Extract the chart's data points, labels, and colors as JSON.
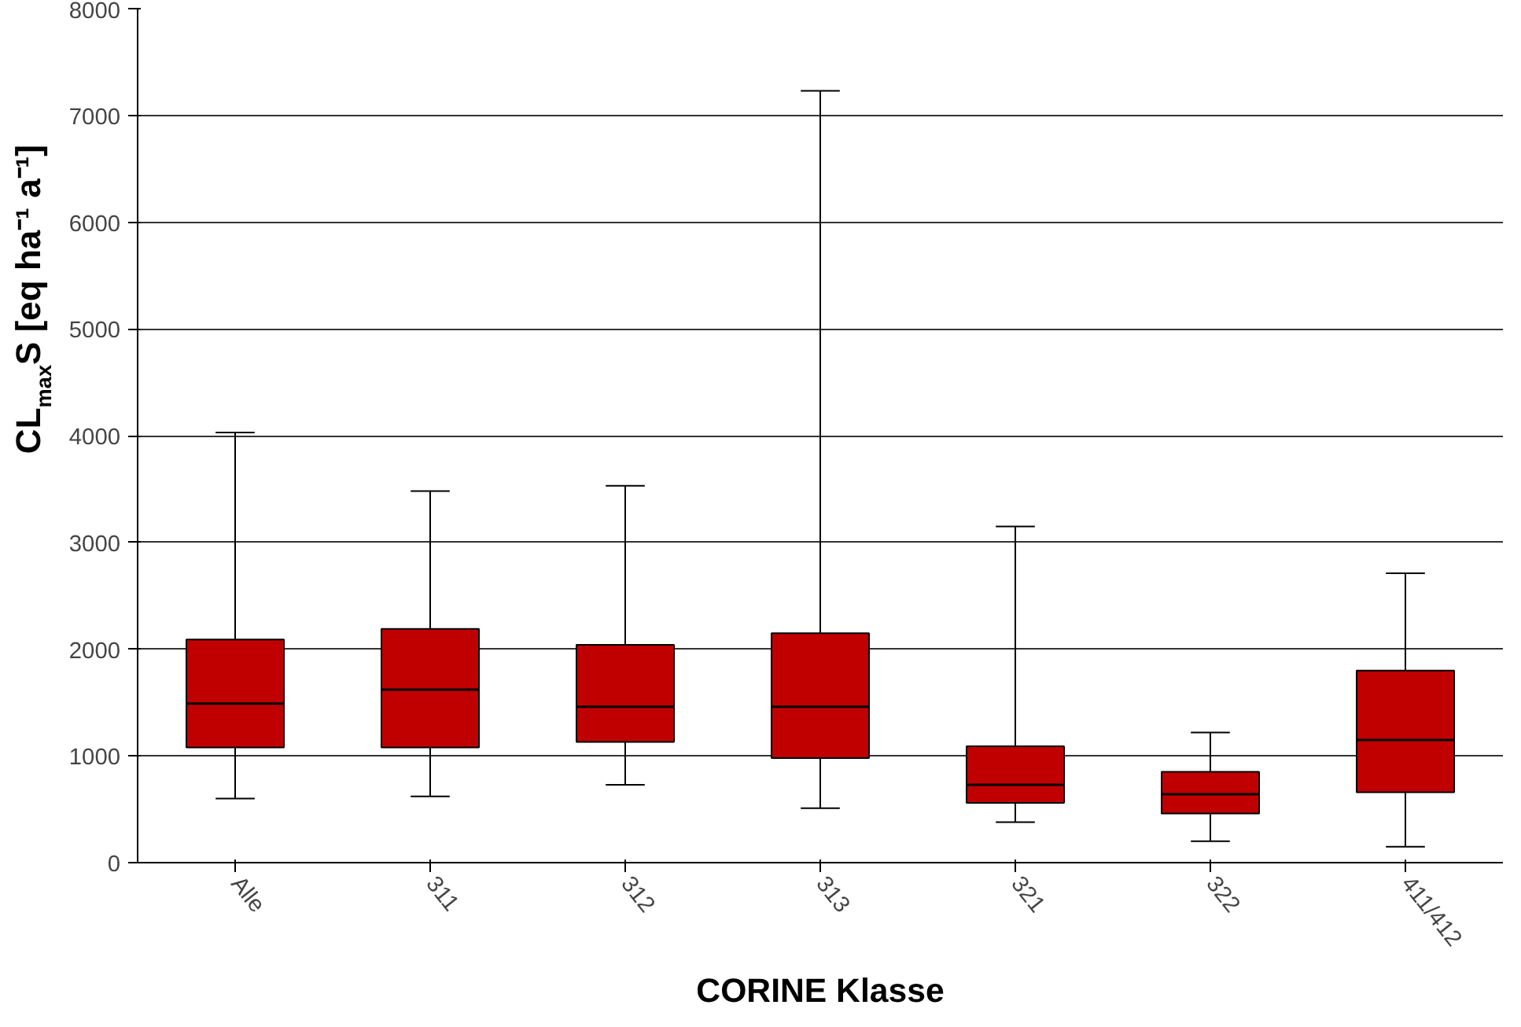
{
  "chart_data": {
    "type": "box",
    "xlabel": "CORINE Klasse",
    "ylabel": "CL$_{max}$S [eq ha⁻¹ a⁻¹]",
    "categories": [
      "Alle",
      "311",
      "312",
      "313",
      "321",
      "322",
      "411/412"
    ],
    "boxes": [
      {
        "low": 600,
        "q1": 1080,
        "median": 1490,
        "q3": 2090,
        "high": 4030
      },
      {
        "low": 620,
        "q1": 1080,
        "median": 1620,
        "q3": 2190,
        "high": 3480
      },
      {
        "low": 730,
        "q1": 1130,
        "median": 1460,
        "q3": 2040,
        "high": 3530
      },
      {
        "low": 510,
        "q1": 980,
        "median": 1460,
        "q3": 2150,
        "high": 7230
      },
      {
        "low": 380,
        "q1": 560,
        "median": 730,
        "q3": 1090,
        "high": 3150
      },
      {
        "low": 200,
        "q1": 460,
        "median": 640,
        "q3": 850,
        "high": 1220
      },
      {
        "low": 150,
        "q1": 660,
        "median": 1150,
        "q3": 1800,
        "high": 2710
      }
    ],
    "color": "#c00000",
    "ylim": [
      0,
      8000
    ],
    "yticks": [
      0,
      1000,
      2000,
      3000,
      4000,
      5000,
      6000,
      7000,
      8000
    ],
    "grid": "y"
  }
}
